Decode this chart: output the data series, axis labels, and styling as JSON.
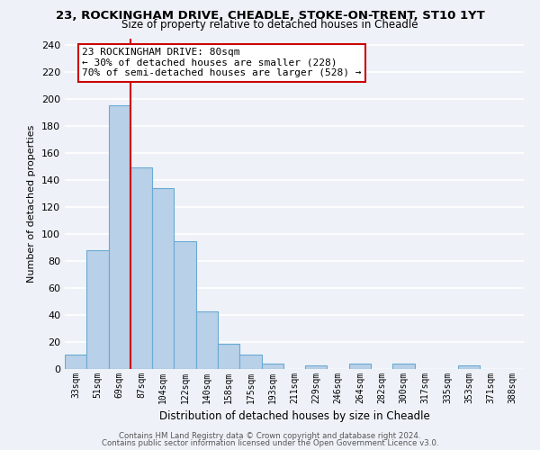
{
  "title": "23, ROCKINGHAM DRIVE, CHEADLE, STOKE-ON-TRENT, ST10 1YT",
  "subtitle": "Size of property relative to detached houses in Cheadle",
  "xlabel": "Distribution of detached houses by size in Cheadle",
  "ylabel": "Number of detached properties",
  "bar_color": "#b8d0e8",
  "bar_edge_color": "#6aaad4",
  "categories": [
    "33sqm",
    "51sqm",
    "69sqm",
    "87sqm",
    "104sqm",
    "122sqm",
    "140sqm",
    "158sqm",
    "175sqm",
    "193sqm",
    "211sqm",
    "229sqm",
    "246sqm",
    "264sqm",
    "282sqm",
    "300sqm",
    "317sqm",
    "335sqm",
    "353sqm",
    "371sqm",
    "388sqm"
  ],
  "values": [
    11,
    88,
    195,
    149,
    134,
    95,
    43,
    19,
    11,
    4,
    0,
    3,
    0,
    4,
    0,
    4,
    0,
    0,
    3,
    0,
    0
  ],
  "vline_x_idx": 2.5,
  "vline_color": "#cc0000",
  "annotation_text": "23 ROCKINGHAM DRIVE: 80sqm\n← 30% of detached houses are smaller (228)\n70% of semi-detached houses are larger (528) →",
  "annotation_box_color": "#ffffff",
  "annotation_box_edge": "#cc0000",
  "ylim": [
    0,
    245
  ],
  "yticks": [
    0,
    20,
    40,
    60,
    80,
    100,
    120,
    140,
    160,
    180,
    200,
    220,
    240
  ],
  "background_color": "#eef2f8",
  "grid_color": "#ffffff",
  "footer_line1": "Contains HM Land Registry data © Crown copyright and database right 2024.",
  "footer_line2": "Contains public sector information licensed under the Open Government Licence v3.0."
}
